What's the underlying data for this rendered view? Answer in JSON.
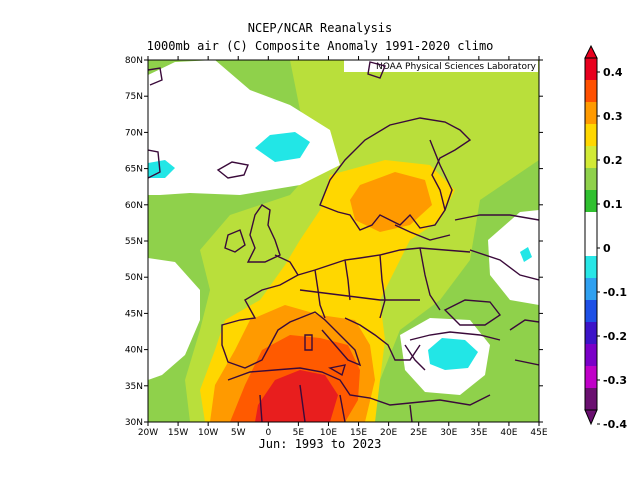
{
  "title_line1": "NCEP/NCAR Reanalysis",
  "title_line2": "1000mb air (C) Composite Anomaly 1991-2020 climo",
  "credit": "NOAA Physical Sciences Laboratory",
  "period": "Jun: 1993 to 2023",
  "lon_labels": [
    "20W",
    "15W",
    "10W",
    "5W",
    "0",
    "5E",
    "10E",
    "15E",
    "20E",
    "25E",
    "30E",
    "35E",
    "40E",
    "45E"
  ],
  "lat_labels": [
    "80N",
    "75N",
    "70N",
    "65N",
    "60N",
    "55N",
    "50N",
    "45N",
    "40N",
    "35N",
    "30N"
  ],
  "colorbar": {
    "labels": [
      "0.4",
      "0.3",
      "0.2",
      "0.1",
      "0",
      "-0.1",
      "-0.2",
      "-0.3",
      "-0.4"
    ],
    "colors": [
      "#e8001e",
      "#ff5000",
      "#ff9a00",
      "#ffd700",
      "#d2ea36",
      "#8fd14b",
      "#2fc02f",
      "#ffffff",
      "#ffffff",
      "#28e6e6",
      "#2fa0f0",
      "#1e50e6",
      "#3c14c8",
      "#7b00c8",
      "#c000c8",
      "#6a1070"
    ]
  },
  "map_colors": {
    "land_outline": "#3a0a3a",
    "cyan": "#22e6e6",
    "green": "#8fd14b",
    "lime": "#b9df3b",
    "yellow": "#ffd700",
    "orange": "#ff9a00",
    "red_orange": "#ff5a00",
    "red": "#e81e1e"
  }
}
